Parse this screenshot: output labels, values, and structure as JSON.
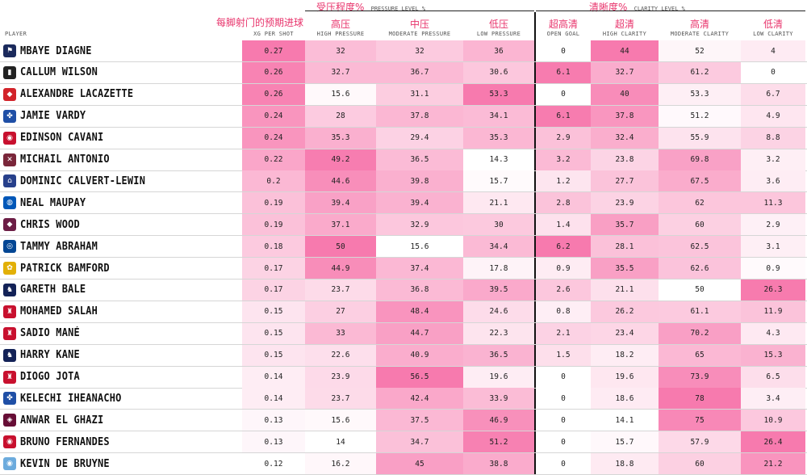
{
  "colors": {
    "accent": "#e8336b",
    "heat_high": "#f77fb0",
    "heat_low": "#ffffff"
  },
  "header": {
    "player": "PLAYER",
    "xg_cn": "每脚射门的预期进球",
    "xg_en": "XG PER SHOT",
    "pressure_group_cn": "受压程度%",
    "pressure_group_en": "PRESSURE LEVEL %",
    "clarity_group_cn": "清晰度%",
    "clarity_group_en": "CLARITY LEVEL %",
    "columns": [
      {
        "cn": "",
        "en": "XG PER SHOT"
      },
      {
        "cn": "高压",
        "en": "HIGH PRESSURE"
      },
      {
        "cn": "中压",
        "en": "MODERATE PRESSURE"
      },
      {
        "cn": "低压",
        "en": "LOW PRESSURE"
      },
      {
        "cn": "超高清",
        "en": "OPEN GOAL"
      },
      {
        "cn": "超清",
        "en": "HIGH CLARITY"
      },
      {
        "cn": "高清",
        "en": "MODERATE CLARITY"
      },
      {
        "cn": "低清",
        "en": "LOW CLARITY"
      }
    ]
  },
  "chart_data": {
    "type": "table",
    "columns": [
      "PLAYER",
      "XG PER SHOT",
      "HIGH PRESSURE",
      "MODERATE PRESSURE",
      "LOW PRESSURE",
      "OPEN GOAL",
      "HIGH CLARITY",
      "MODERATE CLARITY",
      "LOW CLARITY"
    ],
    "rows": [
      {
        "player": "MBAYE DIAGNE",
        "club": "wba",
        "values": [
          "0.27",
          "32",
          "32",
          "36",
          "0",
          "44",
          "52",
          "4"
        ]
      },
      {
        "player": "CALLUM WILSON",
        "club": "newcastle",
        "values": [
          "0.26",
          "32.7",
          "36.7",
          "30.6",
          "6.1",
          "32.7",
          "61.2",
          "0"
        ]
      },
      {
        "player": "ALEXANDRE LACAZETTE",
        "club": "arsenal",
        "values": [
          "0.26",
          "15.6",
          "31.1",
          "53.3",
          "0",
          "40",
          "53.3",
          "6.7"
        ]
      },
      {
        "player": "JAMIE VARDY",
        "club": "leicester",
        "values": [
          "0.24",
          "28",
          "37.8",
          "34.1",
          "6.1",
          "37.8",
          "51.2",
          "4.9"
        ]
      },
      {
        "player": "EDINSON CAVANI",
        "club": "manutd",
        "values": [
          "0.24",
          "35.3",
          "29.4",
          "35.3",
          "2.9",
          "32.4",
          "55.9",
          "8.8"
        ]
      },
      {
        "player": "MICHAIL ANTONIO",
        "club": "westham",
        "values": [
          "0.22",
          "49.2",
          "36.5",
          "14.3",
          "3.2",
          "23.8",
          "69.8",
          "3.2"
        ]
      },
      {
        "player": "DOMINIC CALVERT-LEWIN",
        "club": "everton",
        "values": [
          "0.2",
          "44.6",
          "39.8",
          "15.7",
          "1.2",
          "27.7",
          "67.5",
          "3.6"
        ]
      },
      {
        "player": "NEAL MAUPAY",
        "club": "brighton",
        "values": [
          "0.19",
          "39.4",
          "39.4",
          "21.1",
          "2.8",
          "23.9",
          "62",
          "11.3"
        ]
      },
      {
        "player": "CHRIS WOOD",
        "club": "burnley",
        "values": [
          "0.19",
          "37.1",
          "32.9",
          "30",
          "1.4",
          "35.7",
          "60",
          "2.9"
        ]
      },
      {
        "player": "TAMMY ABRAHAM",
        "club": "chelsea",
        "values": [
          "0.18",
          "50",
          "15.6",
          "34.4",
          "6.2",
          "28.1",
          "62.5",
          "3.1"
        ]
      },
      {
        "player": "PATRICK BAMFORD",
        "club": "leeds",
        "values": [
          "0.17",
          "44.9",
          "37.4",
          "17.8",
          "0.9",
          "35.5",
          "62.6",
          "0.9"
        ]
      },
      {
        "player": "GARETH BALE",
        "club": "tottenham",
        "values": [
          "0.17",
          "23.7",
          "36.8",
          "39.5",
          "2.6",
          "21.1",
          "50",
          "26.3"
        ]
      },
      {
        "player": "MOHAMED SALAH",
        "club": "liverpool",
        "values": [
          "0.15",
          "27",
          "48.4",
          "24.6",
          "0.8",
          "26.2",
          "61.1",
          "11.9"
        ]
      },
      {
        "player": "SADIO MANÉ",
        "club": "liverpool",
        "values": [
          "0.15",
          "33",
          "44.7",
          "22.3",
          "2.1",
          "23.4",
          "70.2",
          "4.3"
        ]
      },
      {
        "player": "HARRY KANE",
        "club": "tottenham",
        "values": [
          "0.15",
          "22.6",
          "40.9",
          "36.5",
          "1.5",
          "18.2",
          "65",
          "15.3"
        ]
      },
      {
        "player": "DIOGO JOTA",
        "club": "liverpool",
        "values": [
          "0.14",
          "23.9",
          "56.5",
          "19.6",
          "0",
          "19.6",
          "73.9",
          "6.5"
        ]
      },
      {
        "player": "KELECHI IHEANACHO",
        "club": "leicester",
        "values": [
          "0.14",
          "23.7",
          "42.4",
          "33.9",
          "0",
          "18.6",
          "78",
          "3.4"
        ]
      },
      {
        "player": "ANWAR EL GHAZI",
        "club": "villa",
        "values": [
          "0.13",
          "15.6",
          "37.5",
          "46.9",
          "0",
          "14.1",
          "75",
          "10.9"
        ]
      },
      {
        "player": "BRUNO FERNANDES",
        "club": "manutd",
        "values": [
          "0.13",
          "14",
          "34.7",
          "51.2",
          "0",
          "15.7",
          "57.9",
          "26.4"
        ]
      },
      {
        "player": "KEVIN DE BRUYNE",
        "club": "mancity",
        "values": [
          "0.12",
          "16.2",
          "45",
          "38.8",
          "0",
          "18.8",
          "60",
          "21.2"
        ]
      }
    ]
  }
}
